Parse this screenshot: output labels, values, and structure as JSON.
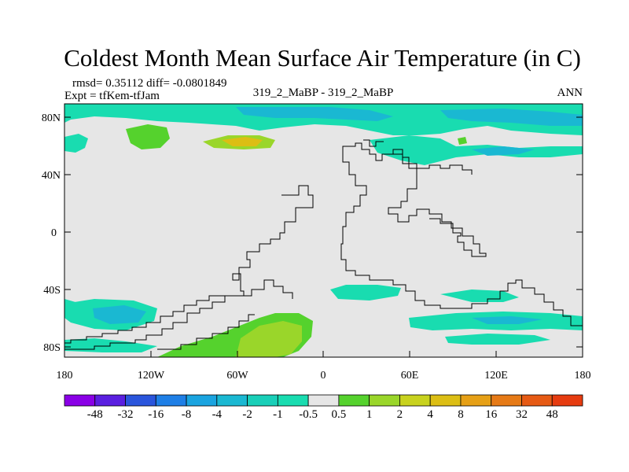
{
  "title": "Coldest Month Mean Surface Air Temperature (in C)",
  "stats": "rmsd= 0.35112 diff= -0.0801849",
  "experiment": "Expt = tfKem-tfJam",
  "center_label": "319_2_MaBP - 319_2_MaBP",
  "season": "ANN",
  "y_ticks": [
    "80N",
    "40N",
    "0",
    "40S",
    "80S"
  ],
  "x_ticks": [
    "180",
    "120W",
    "60W",
    "0",
    "60E",
    "120E",
    "180"
  ],
  "colorbar": {
    "labels": [
      "-48",
      "-32",
      "-16",
      "-8",
      "-4",
      "-2",
      "-1",
      "-0.5",
      "0.5",
      "1",
      "2",
      "4",
      "8",
      "16",
      "32",
      "48"
    ],
    "colors": [
      "#8a00e6",
      "#5a1fe0",
      "#2a55dc",
      "#1e7fe6",
      "#1aa4e0",
      "#1ab8d2",
      "#19cfb8",
      "#19dcb0",
      "#e6e6e6",
      "#55d22d",
      "#9ad62a",
      "#c8d21e",
      "#dcbe14",
      "#e6a016",
      "#e67a16",
      "#e65a14",
      "#e63c10"
    ]
  },
  "map_colors": {
    "land_background": "#e6e6e6",
    "cool_light": "#19dcb0",
    "cool_mid": "#1ab8d2",
    "warm_light": "#55d22d",
    "warm_mid": "#9ad62a",
    "warm_high": "#c8d21e"
  }
}
